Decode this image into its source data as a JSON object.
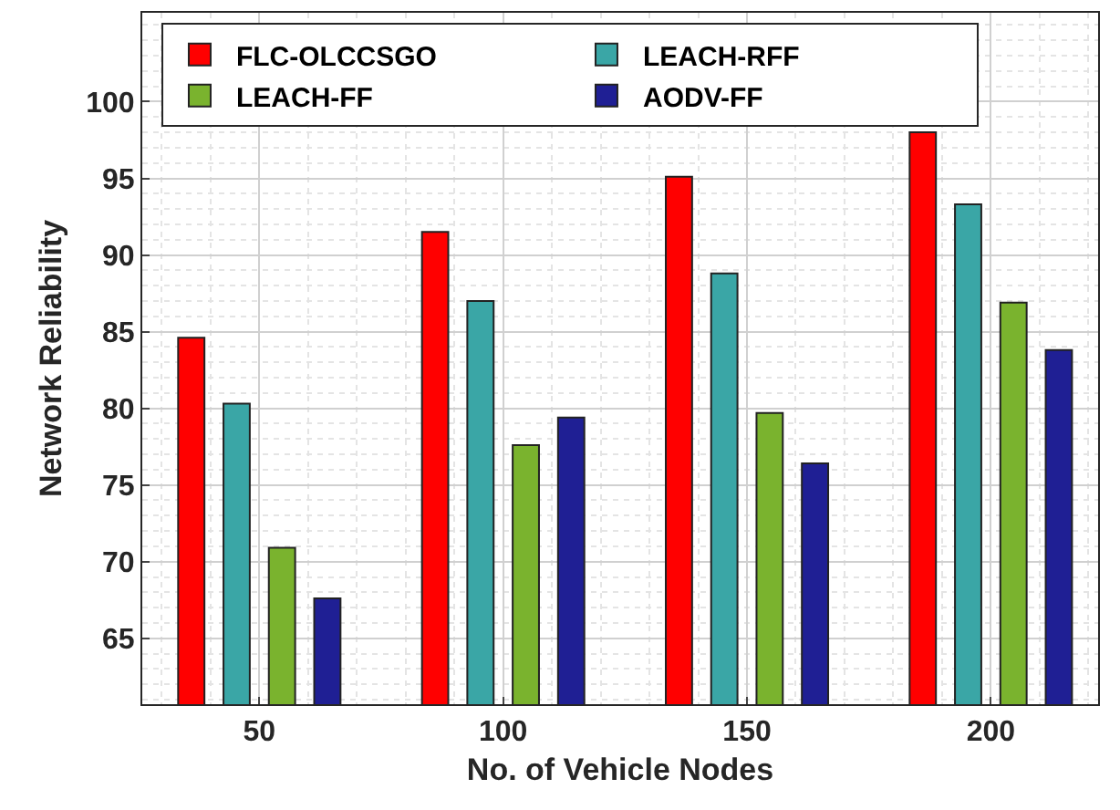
{
  "chart_data": {
    "type": "bar",
    "xlabel": "No. of Vehicle Nodes",
    "ylabel": "Network Reliability",
    "x": [
      50,
      100,
      150,
      200
    ],
    "xlim": [
      26,
      222
    ],
    "xticks": [
      50,
      100,
      150,
      200
    ],
    "ylim": [
      60.7,
      105.8
    ],
    "yticks": [
      65,
      70,
      75,
      80,
      85,
      90,
      95,
      100
    ],
    "series": [
      {
        "name": "FLC-OLCCSGO",
        "color": "#ff0000",
        "values": [
          84.6,
          91.5,
          95.1,
          98.0
        ]
      },
      {
        "name": "LEACH-RFF",
        "color": "#3aa6a6",
        "values": [
          80.3,
          87.0,
          88.8,
          93.3
        ]
      },
      {
        "name": "LEACH-FF",
        "color": "#7ab32e",
        "values": [
          70.9,
          77.6,
          79.7,
          86.9
        ]
      },
      {
        "name": "AODV-FF",
        "color": "#1f1f94",
        "values": [
          67.6,
          79.4,
          76.4,
          83.8
        ]
      }
    ],
    "grid": true,
    "legend": "top"
  }
}
